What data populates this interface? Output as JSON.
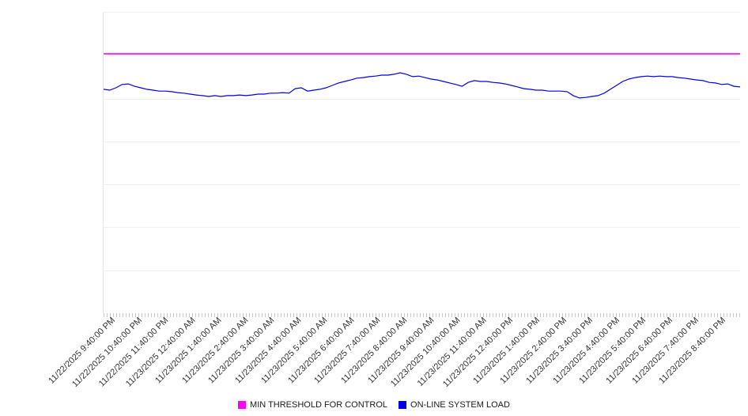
{
  "chart_data": {
    "type": "line",
    "title": "",
    "xlabel": "",
    "ylabel": "",
    "ylim": [
      0,
      100
    ],
    "y_axis_labels_visible": false,
    "y_gridline_divisions": 7,
    "grid": true,
    "legend_position": "bottom",
    "x_labels": [
      "11/22/2025 9:40:00 PM",
      "11/22/2025 10:40:00 PM",
      "11/22/2025 11:40:00 PM",
      "11/23/2025 12:40:00 AM",
      "11/23/2025 1:40:00 AM",
      "11/23/2025 2:40:00 AM",
      "11/23/2025 3:40:00 AM",
      "11/23/2025 4:40:00 AM",
      "11/23/2025 5:40:00 AM",
      "11/23/2025 6:40:00 AM",
      "11/23/2025 7:40:00 AM",
      "11/23/2025 8:40:00 AM",
      "11/23/2025 9:40:00 AM",
      "11/23/2025 10:40:00 AM",
      "11/23/2025 11:40:00 AM",
      "11/23/2025 12:40:00 PM",
      "11/23/2025 1:40:00 PM",
      "11/23/2025 2:40:00 PM",
      "11/23/2025 3:40:00 PM",
      "11/23/2025 4:40:00 PM",
      "11/23/2025 5:40:00 PM",
      "11/23/2025 6:40:00 PM",
      "11/23/2025 7:40:00 PM",
      "11/23/2025 8:40:00 PM"
    ],
    "series": [
      {
        "name": "MIN THRESHOLD FOR CONTROL",
        "color": "#ff00ff",
        "threshold": 86.3
      },
      {
        "name": "ON-LINE SYSTEM LOAD",
        "color": "#0000ee",
        "values": [
          74.5,
          74.2,
          75.0,
          76.1,
          76.3,
          75.5,
          75.0,
          74.5,
          74.2,
          73.9,
          73.9,
          73.7,
          73.4,
          73.2,
          72.9,
          72.6,
          72.4,
          72.1,
          72.4,
          72.1,
          72.4,
          72.4,
          72.6,
          72.4,
          72.6,
          72.9,
          72.9,
          73.2,
          73.2,
          73.4,
          73.2,
          74.7,
          75.0,
          73.9,
          74.2,
          74.5,
          75.0,
          75.8,
          76.6,
          77.1,
          77.6,
          78.2,
          78.4,
          78.7,
          78.9,
          79.2,
          79.2,
          79.5,
          80.0,
          79.5,
          78.7,
          78.9,
          78.4,
          77.9,
          77.6,
          77.1,
          76.6,
          76.1,
          75.5,
          76.8,
          77.4,
          77.1,
          77.1,
          76.8,
          76.6,
          76.3,
          75.8,
          75.3,
          74.7,
          74.5,
          74.2,
          74.2,
          73.9,
          73.9,
          73.9,
          73.7,
          72.4,
          71.6,
          71.8,
          72.1,
          72.4,
          73.2,
          74.5,
          75.8,
          77.1,
          77.9,
          78.4,
          78.7,
          78.9,
          78.7,
          78.9,
          78.7,
          78.7,
          78.4,
          78.2,
          77.9,
          77.6,
          77.4,
          76.8,
          76.6,
          76.1,
          76.3,
          75.5,
          75.3
        ]
      }
    ]
  },
  "legend": {
    "items": [
      {
        "label": "MIN THRESHOLD FOR CONTROL",
        "color": "#ff00ff"
      },
      {
        "label": "ON-LINE SYSTEM LOAD",
        "color": "#0000ee"
      }
    ]
  }
}
